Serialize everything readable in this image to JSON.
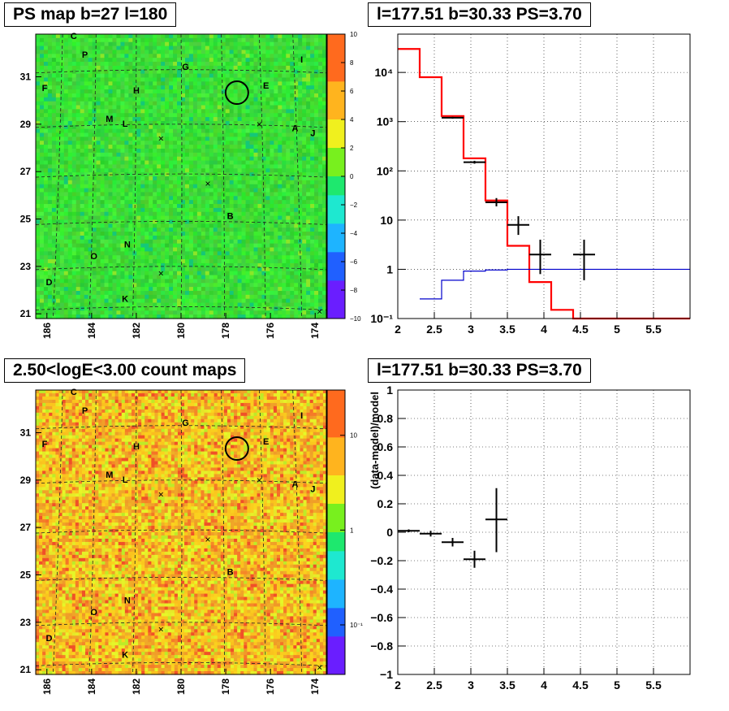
{
  "titles": {
    "ps_map": "PS map b=27 l=180",
    "spectrum": "l=177.51 b=30.33 PS=3.70",
    "count_maps": "2.50<logE<3.00 count maps",
    "residual": "l=177.51 b=30.33 PS=3.70"
  },
  "colors": {
    "ps_map_fill": "#33e833",
    "count_map_fill": "#f2c23a",
    "model_line": "#ff0000",
    "background_line": "#0000cc",
    "data_points": "#000000"
  },
  "chart_data": [
    {
      "type": "heatmap",
      "name_shown": "PS map b=27 l=180",
      "xlim": [
        186.5,
        173.5
      ],
      "ylim": [
        20.8,
        32.8
      ],
      "xticks": [
        "186",
        "184",
        "182",
        "180",
        "178",
        "176",
        "174"
      ],
      "yticks": [
        "21",
        "23",
        "25",
        "27",
        "29",
        "31"
      ],
      "colorbar": {
        "scale": "linear",
        "range": [
          -10,
          10
        ],
        "ticks": [
          "10",
          "8",
          "6",
          "4",
          "2",
          "0",
          "−2",
          "−4",
          "−6",
          "−8",
          "−10"
        ]
      },
      "grid": "dashed-curved",
      "source_circle": {
        "l": 177.5,
        "b": 30.33
      },
      "markers": [
        {
          "label": "C",
          "l": 184.8,
          "b": 32.6
        },
        {
          "label": "P",
          "l": 184.3,
          "b": 31.8
        },
        {
          "label": "F",
          "l": 186.1,
          "b": 30.4
        },
        {
          "label": "G",
          "l": 179.8,
          "b": 31.3
        },
        {
          "label": "I",
          "l": 174.6,
          "b": 31.6
        },
        {
          "label": "H",
          "l": 182.0,
          "b": 30.3
        },
        {
          "label": "E",
          "l": 176.2,
          "b": 30.5
        },
        {
          "label": "M",
          "l": 183.2,
          "b": 29.1
        },
        {
          "label": "L",
          "l": 182.5,
          "b": 28.9
        },
        {
          "label": "A",
          "l": 174.9,
          "b": 28.7
        },
        {
          "label": "J",
          "l": 174.1,
          "b": 28.5
        },
        {
          "label": "B",
          "l": 177.8,
          "b": 25.0
        },
        {
          "label": "N",
          "l": 182.4,
          "b": 23.8
        },
        {
          "label": "O",
          "l": 183.9,
          "b": 23.3
        },
        {
          "label": "D",
          "l": 185.9,
          "b": 22.2
        },
        {
          "label": "K",
          "l": 182.5,
          "b": 21.5
        }
      ],
      "crosses": [
        {
          "l": 176.5,
          "b": 29.0
        },
        {
          "l": 180.9,
          "b": 28.4
        },
        {
          "l": 178.8,
          "b": 26.5
        },
        {
          "l": 180.9,
          "b": 22.7
        },
        {
          "l": 173.8,
          "b": 21.1
        }
      ]
    },
    {
      "type": "line",
      "name_shown": "l=177.51 b=30.33 PS=3.70",
      "yscale": "log",
      "xlim": [
        2,
        6
      ],
      "ylim": [
        0.1,
        60000
      ],
      "xticks": [
        "2",
        "2.5",
        "3",
        "3.5",
        "4",
        "4.5",
        "5",
        "5.5"
      ],
      "yticks": [
        {
          "v": 0.1,
          "label": "10⁻¹"
        },
        {
          "v": 1,
          "label": "1"
        },
        {
          "v": 10,
          "label": "10"
        },
        {
          "v": 100,
          "label": "10²"
        },
        {
          "v": 1000,
          "label": "10³"
        },
        {
          "v": 10000,
          "label": "10⁴"
        }
      ],
      "grid": true,
      "series": [
        {
          "role": "model",
          "edges": [
            2.0,
            2.3,
            2.6,
            2.9,
            3.2,
            3.5,
            3.8,
            4.1,
            4.4,
            6.0
          ],
          "values": [
            30000,
            8000,
            1300,
            180,
            25,
            3,
            0.55,
            0.15,
            0.05
          ]
        },
        {
          "role": "background",
          "edges": [
            2.3,
            2.6,
            2.9,
            3.2,
            3.5,
            6.0
          ],
          "values": [
            0.25,
            0.6,
            0.92,
            0.97,
            1.0
          ]
        },
        {
          "role": "data",
          "points": [
            {
              "x": 2.75,
              "xerr": 0.15,
              "y": 1200,
              "ylo": 1150,
              "yhi": 1250
            },
            {
              "x": 3.05,
              "xerr": 0.15,
              "y": 150,
              "ylo": 140,
              "yhi": 160
            },
            {
              "x": 3.35,
              "xerr": 0.15,
              "y": 23,
              "ylo": 19,
              "yhi": 28
            },
            {
              "x": 3.65,
              "xerr": 0.15,
              "y": 8,
              "ylo": 5,
              "yhi": 12
            },
            {
              "x": 3.95,
              "xerr": 0.15,
              "y": 2,
              "ylo": 0.8,
              "yhi": 4
            },
            {
              "x": 4.55,
              "xerr": 0.15,
              "y": 2,
              "ylo": 0.6,
              "yhi": 4
            }
          ]
        }
      ]
    },
    {
      "type": "heatmap",
      "name_shown": "2.50<logE<3.00 count maps",
      "xlim": [
        186.5,
        173.5
      ],
      "ylim": [
        20.8,
        32.8
      ],
      "xticks": [
        "186",
        "184",
        "182",
        "180",
        "178",
        "176",
        "174"
      ],
      "yticks": [
        "21",
        "23",
        "25",
        "27",
        "29",
        "31"
      ],
      "colorbar": {
        "scale": "log",
        "range": [
          0.03,
          30
        ],
        "ticks": [
          {
            "v": 10,
            "label": "10"
          },
          {
            "v": 1,
            "label": "1"
          },
          {
            "v": 0.1,
            "label": "10⁻¹"
          }
        ]
      },
      "grid": "dashed-curved",
      "source_circle": {
        "l": 177.5,
        "b": 30.33
      }
    },
    {
      "type": "scatter",
      "name_shown": "l=177.51 b=30.33 PS=3.70",
      "ylabel": "(data-model)/model",
      "xlim": [
        2,
        6
      ],
      "ylim": [
        -1,
        1
      ],
      "xticks": [
        "2",
        "2.5",
        "3",
        "3.5",
        "4",
        "4.5",
        "5",
        "5.5"
      ],
      "yticks": [
        "1",
        "0.8",
        "0.6",
        "0.4",
        "0.2",
        "0",
        "−0.2",
        "−0.4",
        "−0.6",
        "−0.8",
        "−1"
      ],
      "grid": true,
      "points": [
        {
          "x": 2.15,
          "xerr": 0.15,
          "y": 0.01,
          "ylo": 0.0,
          "yhi": 0.02
        },
        {
          "x": 2.45,
          "xerr": 0.15,
          "y": -0.01,
          "ylo": -0.03,
          "yhi": 0.01
        },
        {
          "x": 2.75,
          "xerr": 0.15,
          "y": -0.07,
          "ylo": -0.1,
          "yhi": -0.04
        },
        {
          "x": 3.05,
          "xerr": 0.15,
          "y": -0.19,
          "ylo": -0.25,
          "yhi": -0.13
        },
        {
          "x": 3.35,
          "xerr": 0.15,
          "y": 0.09,
          "ylo": -0.14,
          "yhi": 0.31
        }
      ]
    }
  ]
}
